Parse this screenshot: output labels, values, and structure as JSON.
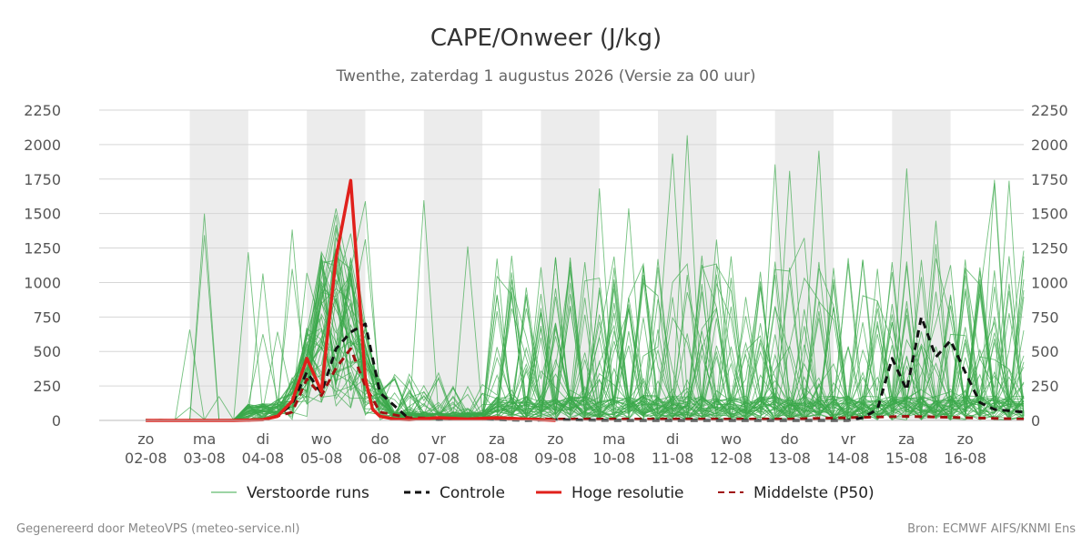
{
  "chart_data": {
    "type": "line",
    "title": "CAPE/Onweer (J/kg)",
    "subtitle": "Twenthe, zaterdag  1 augustus 2026 (Versie za 00 uur)",
    "ylim": [
      0,
      2250
    ],
    "yticks": [
      0,
      250,
      500,
      750,
      1000,
      1250,
      1500,
      1750,
      2000,
      2250
    ],
    "xlim": [
      0,
      15
    ],
    "x_day_labels": [
      "zo",
      "ma",
      "di",
      "wo",
      "do",
      "vr",
      "za",
      "zo",
      "ma",
      "di",
      "wo",
      "do",
      "vr",
      "za",
      "zo"
    ],
    "x_date_labels": [
      "02-08",
      "03-08",
      "04-08",
      "05-08",
      "06-08",
      "07-08",
      "08-08",
      "09-08",
      "10-08",
      "11-08",
      "12-08",
      "13-08",
      "14-08",
      "15-08",
      "16-08"
    ],
    "weekend_shading": [
      [
        0.75,
        1.75
      ],
      [
        2.75,
        3.75
      ],
      [
        4.75,
        5.75
      ],
      [
        6.75,
        7.75
      ],
      [
        8.75,
        9.75
      ],
      [
        10.75,
        11.75
      ],
      [
        12.75,
        13.75
      ]
    ],
    "grid": true,
    "legend_position": "bottom",
    "series": [
      {
        "name": "Controle",
        "color": "#111111",
        "style": "dashed",
        "x": [
          0,
          0.5,
          1,
          1.5,
          2,
          2.25,
          2.5,
          2.75,
          3,
          3.25,
          3.5,
          3.75,
          4,
          4.5,
          5,
          5.5,
          6,
          6.5,
          7,
          8,
          9,
          10,
          11,
          11.5,
          12,
          12.25,
          12.5,
          12.75,
          13,
          13.25,
          13.5,
          13.75,
          14,
          14.25,
          14.5,
          14.75,
          15
        ],
        "values": [
          0,
          0,
          0,
          0,
          5,
          30,
          120,
          350,
          200,
          520,
          640,
          700,
          200,
          10,
          5,
          10,
          5,
          0,
          5,
          0,
          0,
          0,
          0,
          0,
          0,
          20,
          80,
          450,
          220,
          750,
          460,
          580,
          350,
          130,
          80,
          70,
          60
        ]
      },
      {
        "name": "Hoge resolutie",
        "color": "#e0201b",
        "style": "solid",
        "x": [
          0,
          0.5,
          1,
          1.5,
          2,
          2.25,
          2.5,
          2.75,
          3,
          3.25,
          3.5,
          3.75,
          3.875,
          4,
          4.25,
          4.5,
          5,
          5.5,
          6,
          6.5,
          7
        ],
        "values": [
          0,
          0,
          0,
          0,
          5,
          30,
          140,
          450,
          210,
          1180,
          1740,
          300,
          80,
          30,
          10,
          5,
          20,
          10,
          20,
          10,
          0
        ]
      },
      {
        "name": "Middelste (P50)",
        "color": "#a01010",
        "style": "dashed",
        "x": [
          0,
          0.5,
          1,
          1.5,
          2,
          2.5,
          2.75,
          3,
          3.25,
          3.5,
          3.75,
          4,
          4.5,
          5,
          6,
          7,
          8,
          9,
          10,
          11,
          12,
          13,
          14,
          15
        ],
        "values": [
          0,
          0,
          0,
          0,
          5,
          60,
          300,
          180,
          380,
          520,
          250,
          60,
          20,
          15,
          10,
          10,
          10,
          10,
          10,
          10,
          20,
          30,
          20,
          10
        ]
      }
    ],
    "ensemble": {
      "name": "Verstoorde runs",
      "color": "#3aa84a",
      "member_count": 50
    }
  },
  "legend": {
    "ensemble": "Verstoorde runs",
    "control": "Controle",
    "hires": "Hoge resolutie",
    "median": "Middelste (P50)"
  },
  "footer": {
    "left": "Gegenereerd door MeteoVPS (meteo-service.nl)",
    "right": "Bron: ECMWF AIFS/KNMI Ens"
  }
}
